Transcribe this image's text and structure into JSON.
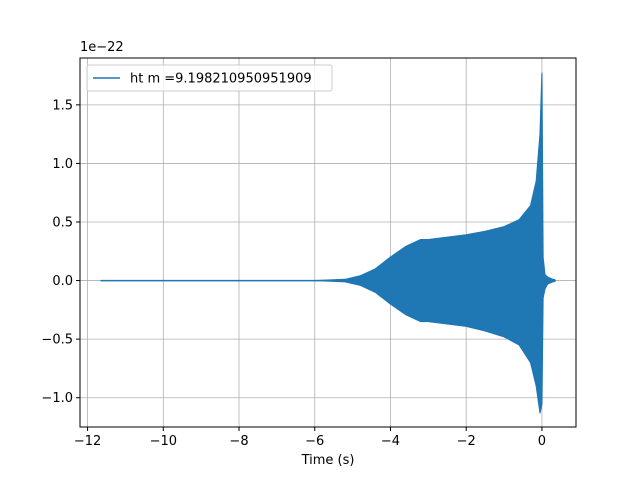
{
  "chart_data": {
    "type": "line",
    "title": "",
    "xlabel": "Time (s)",
    "ylabel": "",
    "y_multiplier_label": "1e−22",
    "xlim": [
      -12.2,
      0.9
    ],
    "ylim": [
      -1.25,
      1.9
    ],
    "x_ticks": [
      -12,
      -10,
      -8,
      -6,
      -4,
      -2,
      0
    ],
    "x_tick_labels": [
      "−12",
      "−10",
      "−8",
      "−6",
      "−4",
      "−2",
      "0"
    ],
    "y_ticks": [
      -1.0,
      -0.5,
      0.0,
      0.5,
      1.0,
      1.5
    ],
    "y_tick_labels": [
      "−1.0",
      "−0.5",
      "0.0",
      "0.5",
      "1.0",
      "1.5"
    ],
    "grid": true,
    "legend_position": "top-left",
    "series": [
      {
        "name": "ht m =9.198210950951909",
        "color": "#1f77b4",
        "start_time": -11.65,
        "end_time": 0.35,
        "envelope": {
          "x": [
            -11.65,
            -6.0,
            -5.2,
            -4.8,
            -4.4,
            -4.0,
            -3.6,
            -3.2,
            -3.0,
            -2.5,
            -2.0,
            -1.5,
            -1.0,
            -0.6,
            -0.3,
            -0.15,
            -0.05,
            0.0,
            0.03,
            0.08,
            0.15,
            0.25,
            0.35
          ],
          "upper": [
            0.0,
            0.0,
            0.01,
            0.04,
            0.1,
            0.2,
            0.29,
            0.35,
            0.35,
            0.37,
            0.39,
            0.42,
            0.46,
            0.52,
            0.64,
            0.85,
            1.25,
            1.77,
            0.2,
            0.05,
            0.03,
            0.015,
            0.005
          ],
          "lower": [
            0.0,
            0.0,
            -0.01,
            -0.04,
            -0.1,
            -0.2,
            -0.29,
            -0.35,
            -0.35,
            -0.37,
            -0.39,
            -0.43,
            -0.48,
            -0.55,
            -0.7,
            -0.9,
            -1.13,
            -1.05,
            -0.15,
            -0.07,
            -0.03,
            -0.015,
            -0.005
          ]
        }
      }
    ]
  }
}
